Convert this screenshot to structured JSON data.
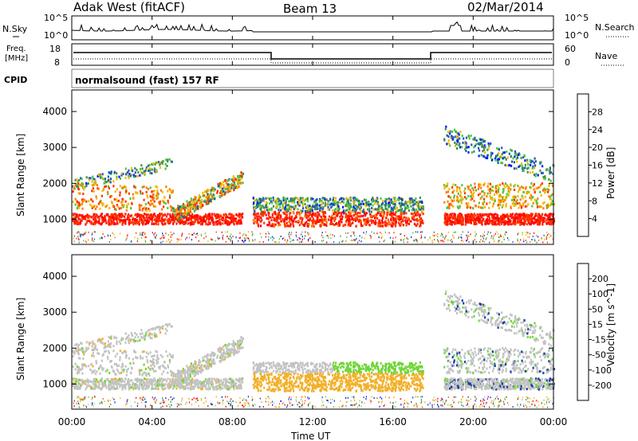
{
  "header": {
    "station": "Adak West (fitACF)",
    "beam": "Beam 13",
    "date": "02/Mar/2014"
  },
  "noise_panel": {
    "left_label": "N.Sky",
    "right_label": "N.Search",
    "left_ticks": [
      "10^5",
      "10^0"
    ],
    "right_ticks": [
      "10^5",
      "10^0"
    ]
  },
  "freq_panel": {
    "left_label_1": "Freq.",
    "left_label_2": "[MHz]",
    "right_label": "Nave",
    "left_ticks": [
      "18",
      "8"
    ],
    "right_ticks": [
      "60",
      "0"
    ],
    "cpid_label": "CPID",
    "cpid_text": "normalsound (fast) 157 RF"
  },
  "colors": {
    "power": [
      "#0019ff",
      "#225ab4",
      "#3d8f55",
      "#4cc83c",
      "#f5b800",
      "#ff7a00",
      "#ff3200",
      "#ff0000"
    ],
    "velocity": [
      "#ff0000",
      "#ff5a00",
      "#ff9d00",
      "#f2b02a",
      "#c3c3c3",
      "#71d63a",
      "#2e8b57",
      "#1b3ea3",
      "#0019ff"
    ]
  },
  "chart_data": [
    {
      "type": "heatmap",
      "name": "power",
      "ylabel": "Slant Range [km]",
      "y_ticks": [
        "1000",
        "2000",
        "3000",
        "4000"
      ],
      "ylim": [
        300,
        4600
      ],
      "xlim": [
        "00:00",
        "24:00"
      ],
      "colorbar": {
        "label": "Power [dB]",
        "ticks": [
          "4",
          "8",
          "12",
          "16",
          "20",
          "24",
          "28"
        ],
        "range": [
          0,
          32
        ]
      },
      "regions": [
        {
          "t_start": 0.0,
          "t_end": 9.0,
          "range_center_km": 1100,
          "desc_ok": true
        },
        {
          "t_start": 9.0,
          "t_end": 17.5,
          "range_center_km": 1200
        },
        {
          "t_start": 18.0,
          "t_end": 24.0,
          "range_center_km": 1050
        }
      ]
    },
    {
      "type": "heatmap",
      "name": "velocity",
      "ylabel": "Slant Range [km]",
      "y_ticks": [
        "1000",
        "2000",
        "3000",
        "4000"
      ],
      "ylim": [
        300,
        4600
      ],
      "xlim": [
        "00:00",
        "24:00"
      ],
      "colorbar": {
        "label": "Velocity [m s^-1]",
        "ticks": [
          "200",
          "100",
          "50",
          "15",
          "-15",
          "-50",
          "-100",
          "-200"
        ]
      }
    }
  ],
  "x_axis": {
    "ticks": [
      "00:00",
      "04:00",
      "08:00",
      "12:00",
      "16:00",
      "20:00",
      "00:00"
    ],
    "label": "Time UT"
  }
}
